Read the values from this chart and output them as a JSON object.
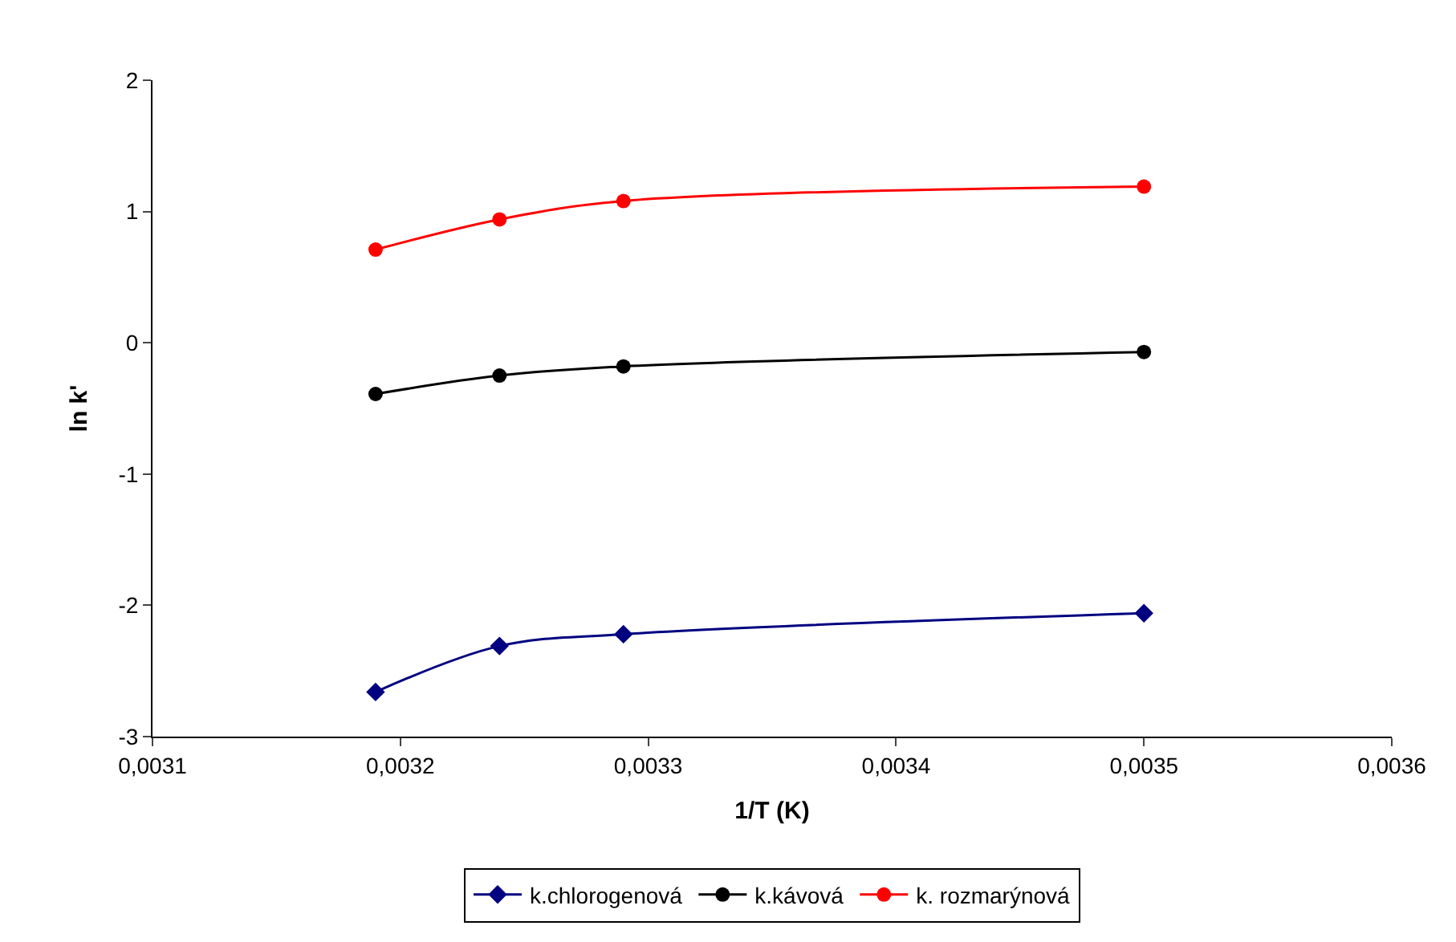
{
  "chart_data": {
    "type": "line",
    "xlabel": "1/T (K)",
    "ylabel": "ln k'",
    "x": [
      0.00319,
      0.00324,
      0.00329,
      0.0035
    ],
    "series": [
      {
        "name": "k.chlorogenová",
        "color": "#000080",
        "marker": "diamond",
        "values": [
          -2.66,
          -2.31,
          -2.22,
          -2.06
        ]
      },
      {
        "name": "k.kávová",
        "color": "#000000",
        "marker": "circle",
        "values": [
          -0.39,
          -0.25,
          -0.18,
          -0.07
        ]
      },
      {
        "name": "k. rozmarýnová",
        "color": "#ff0000",
        "marker": "circle",
        "values": [
          0.71,
          0.94,
          1.08,
          1.19
        ]
      }
    ],
    "xlim": [
      0.0031,
      0.0036
    ],
    "xticks": [
      {
        "value": 0.0031,
        "label": "0,0031"
      },
      {
        "value": 0.0032,
        "label": "0,0032"
      },
      {
        "value": 0.0033,
        "label": "0,0033"
      },
      {
        "value": 0.0034,
        "label": "0,0034"
      },
      {
        "value": 0.0035,
        "label": "0,0035"
      },
      {
        "value": 0.0036,
        "label": "0,0036"
      }
    ],
    "ylim": [
      -3,
      2
    ],
    "yticks": [
      -3,
      -2,
      -1,
      0,
      1,
      2
    ],
    "legend": "bottom"
  }
}
